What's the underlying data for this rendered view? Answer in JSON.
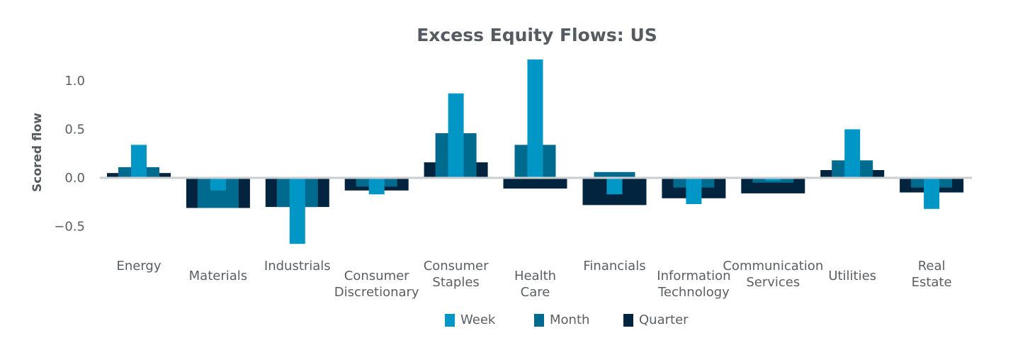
{
  "chart_data": {
    "type": "bar",
    "title": "Excess Equity Flows:  US",
    "ylabel": "Scored flow",
    "xlabel": "",
    "ylim": [
      -0.7,
      1.25
    ],
    "yticks": [
      1.0,
      0.5,
      0.0,
      -0.5
    ],
    "ytick_labels": [
      "1.0",
      "0.5",
      "0.0",
      "−0.5"
    ],
    "grid": false,
    "legend_position": "bottom-center",
    "categories": [
      [
        "Energy"
      ],
      [
        "Materials"
      ],
      [
        "Industrials"
      ],
      [
        "Consumer",
        "Discretionary"
      ],
      [
        "Consumer",
        "Staples"
      ],
      [
        "Health",
        "Care"
      ],
      [
        "Financials"
      ],
      [
        "Information",
        "Technology"
      ],
      [
        "Communication",
        "Services"
      ],
      [
        "Utilities"
      ],
      [
        "Real",
        "Estate"
      ]
    ],
    "series": [
      {
        "name": "Quarter",
        "color": "#03243f",
        "values": [
          0.05,
          -0.31,
          -0.3,
          -0.13,
          0.16,
          -0.11,
          -0.28,
          -0.21,
          -0.16,
          0.08,
          -0.15
        ]
      },
      {
        "name": "Month",
        "color": "#006b8f",
        "values": [
          0.11,
          -0.31,
          -0.3,
          -0.09,
          0.46,
          0.34,
          0.06,
          -0.1,
          -0.05,
          0.18,
          -0.1
        ]
      },
      {
        "name": "Week",
        "color": "#0097c7",
        "values": [
          0.34,
          -0.13,
          -0.68,
          -0.17,
          0.87,
          1.22,
          -0.17,
          -0.27,
          -0.03,
          0.5,
          -0.32
        ]
      }
    ],
    "legend": [
      {
        "label": "Week",
        "color": "#0097c7"
      },
      {
        "label": "Month",
        "color": "#006b8f"
      },
      {
        "label": "Quarter",
        "color": "#03243f"
      }
    ]
  }
}
